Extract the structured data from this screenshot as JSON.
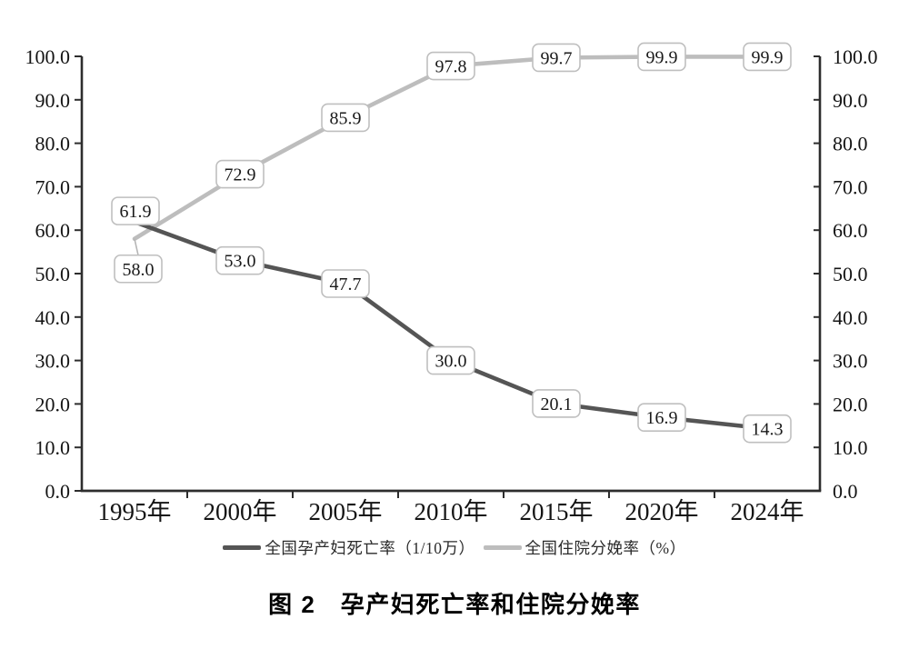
{
  "figure": {
    "caption": "图 2　孕产妇死亡率和住院分娩率"
  },
  "chart_data": {
    "type": "line",
    "title": "图 2　孕产妇死亡率和住院分娩率",
    "categories": [
      "1995年",
      "2000年",
      "2005年",
      "2010年",
      "2015年",
      "2020年",
      "2024年"
    ],
    "series": [
      {
        "name": "全国孕产妇死亡率（1/10万）",
        "axis": "left",
        "color": "#555555",
        "values": [
          61.9,
          53.0,
          47.7,
          30.0,
          20.1,
          16.9,
          14.3
        ],
        "point_labels": [
          "61.9",
          "53.0",
          "47.7",
          "30.0",
          "20.1",
          "16.9",
          "14.3"
        ]
      },
      {
        "name": "全国住院分娩率（%）",
        "axis": "right",
        "color": "#bdbdbd",
        "values": [
          58.0,
          72.9,
          85.9,
          97.8,
          99.7,
          99.9,
          99.9
        ],
        "point_labels": [
          "58.0",
          "72.9",
          "85.9",
          "97.8",
          "99.7",
          "99.9",
          "99.9"
        ]
      }
    ],
    "y_axis_left": {
      "min": 0,
      "max": 100,
      "step": 10,
      "tick_labels": [
        "0.0",
        "10.0",
        "20.0",
        "30.0",
        "40.0",
        "50.0",
        "60.0",
        "70.0",
        "80.0",
        "90.0",
        "100.0"
      ]
    },
    "y_axis_right": {
      "min": 0,
      "max": 100,
      "step": 10,
      "tick_labels": [
        "0.0",
        "10.0",
        "20.0",
        "30.0",
        "40.0",
        "50.0",
        "60.0",
        "70.0",
        "80.0",
        "90.0",
        "100.0"
      ]
    },
    "legend_position": "bottom",
    "grid": false,
    "data_label_boxes": true
  }
}
